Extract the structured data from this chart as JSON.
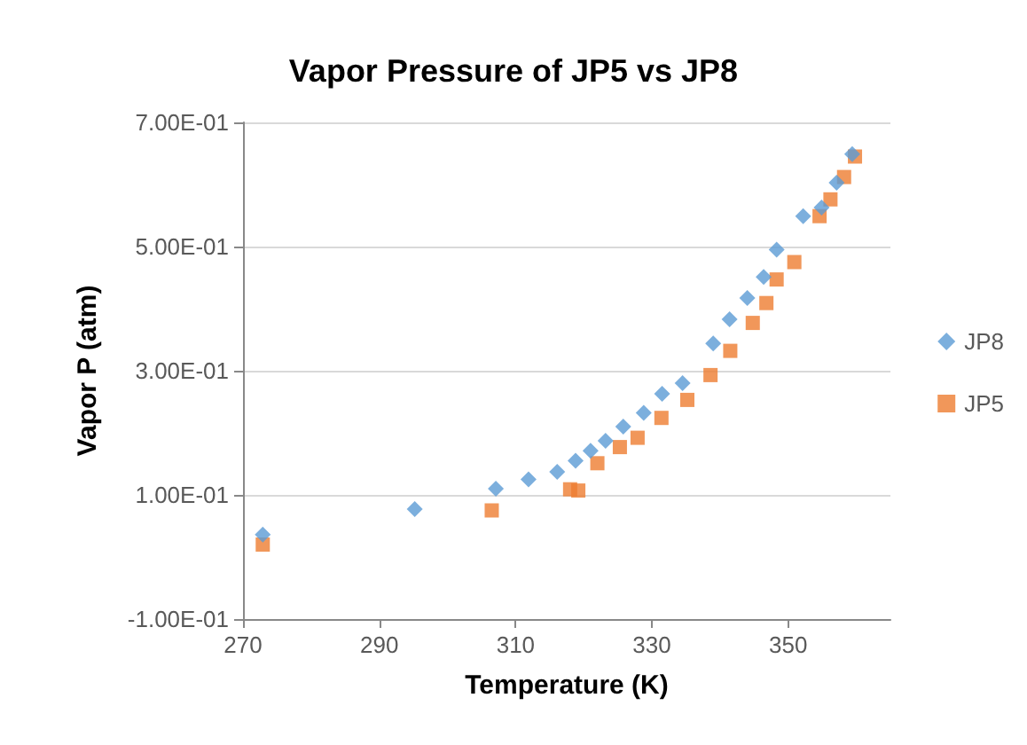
{
  "chart_data": {
    "type": "scatter",
    "title": "Vapor Pressure of JP5 vs JP8",
    "xlabel": "Temperature (K)",
    "ylabel": "Vapor P (atm)",
    "xlim": [
      270,
      365
    ],
    "xticks": [
      270,
      290,
      310,
      330,
      350
    ],
    "ylim": [
      -0.1,
      0.7
    ],
    "yticks": [
      {
        "value": -0.1,
        "label": "-1.00E-01"
      },
      {
        "value": 0.1,
        "label": "1.00E-01"
      },
      {
        "value": 0.3,
        "label": "3.00E-01"
      },
      {
        "value": 0.5,
        "label": "5.00E-01"
      },
      {
        "value": 0.7,
        "label": "7.00E-01"
      }
    ],
    "grid": "y",
    "legend": "right",
    "series": [
      {
        "name": "JP8",
        "color": "#5b9bd5",
        "marker": "diamond",
        "x": [
          272.9,
          295.2,
          307.1,
          311.9,
          316.1,
          318.8,
          321.0,
          323.2,
          325.8,
          328.8,
          331.5,
          334.5,
          339.0,
          341.4,
          344.0,
          346.4,
          348.3,
          352.2,
          354.9,
          357.1,
          359.4
        ],
        "values": [
          0.036,
          0.077,
          0.11,
          0.125,
          0.137,
          0.155,
          0.171,
          0.187,
          0.21,
          0.232,
          0.263,
          0.28,
          0.344,
          0.383,
          0.417,
          0.451,
          0.495,
          0.549,
          0.563,
          0.603,
          0.649
        ]
      },
      {
        "name": "JP5",
        "color": "#ed7d31",
        "marker": "square",
        "x": [
          272.9,
          306.5,
          318.0,
          319.2,
          322.0,
          325.3,
          327.9,
          331.4,
          335.2,
          338.6,
          341.5,
          344.8,
          346.8,
          348.3,
          350.9,
          354.6,
          356.2,
          358.2,
          359.8
        ],
        "values": [
          0.02,
          0.075,
          0.109,
          0.107,
          0.151,
          0.177,
          0.192,
          0.224,
          0.253,
          0.293,
          0.332,
          0.377,
          0.409,
          0.447,
          0.475,
          0.549,
          0.576,
          0.612,
          0.645
        ]
      }
    ]
  }
}
